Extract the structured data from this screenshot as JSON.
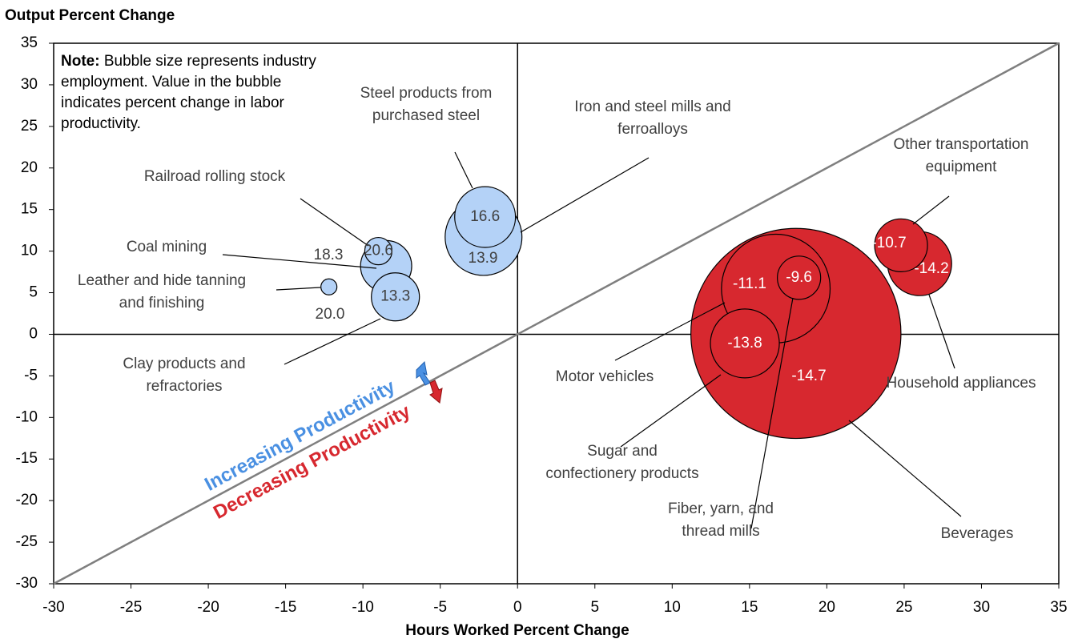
{
  "chart_data": {
    "type": "bubble",
    "title": "Output Percent Change",
    "x_label": "Hours Worked Percent Change",
    "note_bold": "Note:",
    "note": [
      "Bubble size represents industry",
      "employment. Value in the bubble",
      "indicates percent change in labor",
      "productivity."
    ],
    "annotations": {
      "increasing": "Increasing Productivity",
      "decreasing": "Decreasing Productivity"
    },
    "xlim": [
      -30,
      35
    ],
    "ylim": [
      -30,
      35
    ],
    "xticks": [
      -30,
      -25,
      -20,
      -15,
      -10,
      -5,
      0,
      5,
      10,
      15,
      20,
      25,
      30,
      35
    ],
    "yticks": [
      -30,
      -25,
      -20,
      -15,
      -10,
      -5,
      0,
      5,
      10,
      15,
      20,
      25,
      30,
      35
    ],
    "colors": {
      "increasing": "#b4d2f7",
      "decreasing": "#d7282f"
    },
    "points": [
      {
        "name": [
          "Beverages"
        ],
        "x": 18.0,
        "y": 0.1,
        "size": 172,
        "productivity": -14.7,
        "productivity_label": "-14.7"
      },
      {
        "name": [
          "Motor vehicles"
        ],
        "x": 16.7,
        "y": 5.5,
        "size": 46,
        "productivity": -11.1,
        "productivity_label": "-11.1"
      },
      {
        "name": [
          "Iron and steel mills and",
          "ferroalloys"
        ],
        "x": -2.2,
        "y": 11.7,
        "size": 23,
        "productivity": 13.9,
        "productivity_label": "13.9"
      },
      {
        "name": [
          "Sugar and",
          "confectionery products"
        ],
        "x": 14.7,
        "y": -1.1,
        "size": 18.5,
        "productivity": -13.8,
        "productivity_label": "-13.8"
      },
      {
        "name": [
          "Household appliances"
        ],
        "x": 26.0,
        "y": 8.5,
        "size": 16,
        "productivity": -14.2,
        "productivity_label": "-14.2"
      },
      {
        "name": [
          "Steel products from",
          "purchased steel"
        ],
        "x": -2.1,
        "y": 14.1,
        "size": 14.4,
        "productivity": 16.6,
        "productivity_label": "16.6"
      },
      {
        "name": [
          "Other transportation",
          "equipment"
        ],
        "x": 24.8,
        "y": 10.7,
        "size": 10.9,
        "productivity": -10.7,
        "productivity_label": "-10.7"
      },
      {
        "name": [
          "Coal mining"
        ],
        "x": -8.5,
        "y": 8.2,
        "size": 10.2,
        "productivity": 18.3,
        "productivity_label": "18.3"
      },
      {
        "name": [
          "Clay products and",
          "refractories"
        ],
        "x": -7.9,
        "y": 4.5,
        "size": 9,
        "productivity": 13.3,
        "productivity_label": "13.3"
      },
      {
        "name": [
          "Fiber, yarn, and",
          "thread mills"
        ],
        "x": 18.2,
        "y": 6.8,
        "size": 7.3,
        "productivity": -9.6,
        "productivity_label": "-9.6"
      },
      {
        "name": [
          "Railroad rolling stock"
        ],
        "x": -9.0,
        "y": 10.0,
        "size": 2.9,
        "productivity": 20.6,
        "productivity_label": "20.6"
      },
      {
        "name": [
          "Leather and hide tanning",
          "and finishing"
        ],
        "x": -12.2,
        "y": 5.7,
        "size": 1,
        "productivity": 20.0,
        "productivity_label": "20.0"
      }
    ]
  }
}
